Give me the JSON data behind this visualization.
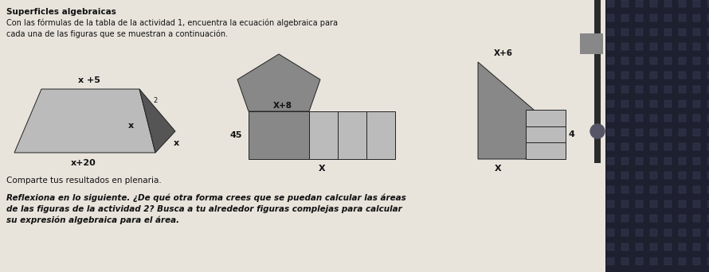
{
  "bg_color": "#e8e4dc",
  "title": "Superficles algebraicas",
  "subtitle_line1": "Con las fórmulas de la tabla de la actividad 1, encuentra la ecuación algebraica para",
  "subtitle_line2": "cada una de las figuras que se muestran a continuación.",
  "bottom_line1": "Comparte tus resultados en plenaria.",
  "bottom_line2": "Reflexiona en lo siguiente. ¿De qué otra forma crees que se puedan calcular las áreas",
  "bottom_line3": "de las figuras de la actividad 2? Busca a tu alrededor figuras complejas para calcular",
  "bottom_line4": "su expresión algebraica para el área.",
  "shape_gray": "#888888",
  "shape_dark": "#555555",
  "shape_light": "#bbbbbb",
  "text_color": "#111111",
  "spine_color": "#3a3a3a",
  "dot_color": "#777777",
  "fabric_color": "#2a2a3a"
}
